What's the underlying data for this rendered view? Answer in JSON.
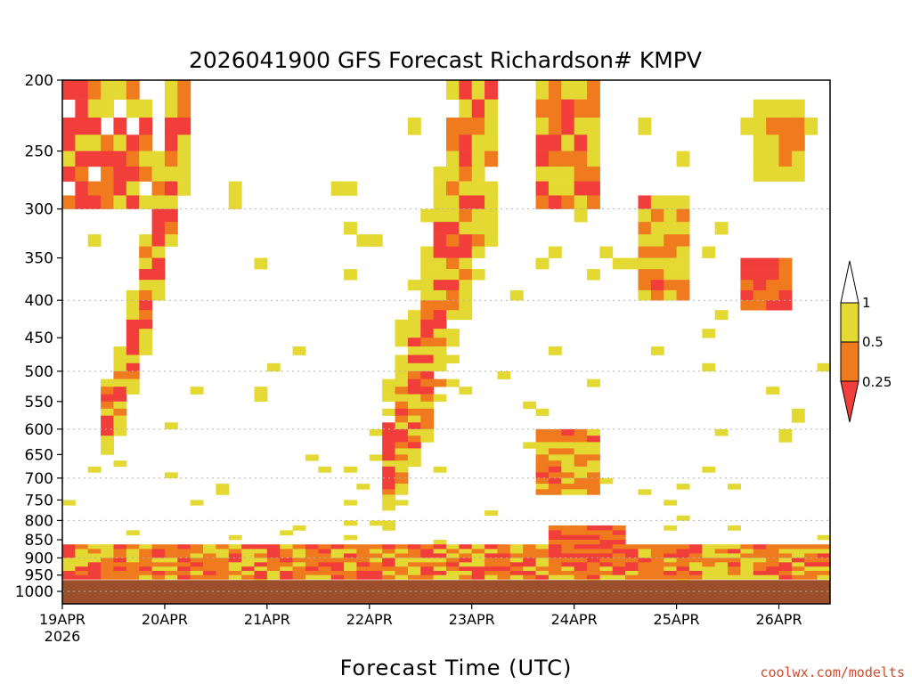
{
  "chart_data": {
    "type": "heatmap",
    "title": "2026041900 GFS Forecast Richardson# KMPV",
    "xlabel": "Forecast Time (UTC)",
    "ylabel": "",
    "x_start_label": "19APR",
    "x_start_year": "2026",
    "x_ticks": [
      "19APR",
      "20APR",
      "21APR",
      "22APR",
      "23APR",
      "24APR",
      "25APR",
      "26APR"
    ],
    "x_range_days": [
      0,
      7.5
    ],
    "y_scale": "log-pressure",
    "y_range_hpa": [
      1040,
      200
    ],
    "y_ticks": [
      200,
      250,
      300,
      350,
      400,
      450,
      500,
      550,
      600,
      650,
      700,
      750,
      800,
      850,
      900,
      950,
      1000
    ],
    "gridlines_hpa": [
      300,
      400,
      500,
      600,
      700,
      800,
      900,
      1000
    ],
    "surface_pressure_hpa": 965,
    "surface_color": "#9b4f2b",
    "colorbar": {
      "ticks": [
        "1",
        "0.5",
        "0.25"
      ],
      "bins": [
        {
          "range": "< 0.25",
          "color": "#f23e3a"
        },
        {
          "range": "0.25 - 0.5",
          "color": "#ef7b1e"
        },
        {
          "range": "0.5 - 1",
          "color": "#e4d832"
        },
        {
          "range": "> 1",
          "color": "#ffffff"
        }
      ]
    },
    "features": [
      {
        "level": "red",
        "t": [
          0.0,
          7.5
        ],
        "p": [
          860,
          955
        ],
        "note": "persistent low Richardson numbers in boundary layer"
      },
      {
        "level": "red",
        "t": [
          0.3,
          1.1
        ],
        "p": [
          200,
          620
        ],
        "note": "diagonal band of low Ri on 19-20 APR"
      },
      {
        "level": "red",
        "t": [
          3.2,
          4.2
        ],
        "p": [
          250,
          800
        ],
        "note": "upward-sloping low Ri region 23 APR"
      },
      {
        "level": "red",
        "t": [
          4.6,
          5.2
        ],
        "p": [
          200,
          280
        ],
        "note": "upper-level patch 23-24 APR"
      },
      {
        "level": "orange",
        "t": [
          4.8,
          5.2
        ],
        "p": [
          600,
          720
        ],
        "note": "mid-level patch near 24 APR"
      },
      {
        "level": "red",
        "t": [
          6.5,
          7.0
        ],
        "p": [
          350,
          400
        ],
        "note": "upper-level patch 25-26 APR"
      },
      {
        "level": "orange",
        "t": [
          6.7,
          7.1
        ],
        "p": [
          220,
          250
        ],
        "note": "upper-level patch 26 APR"
      }
    ]
  },
  "credit": "coolwx.com/modelts"
}
